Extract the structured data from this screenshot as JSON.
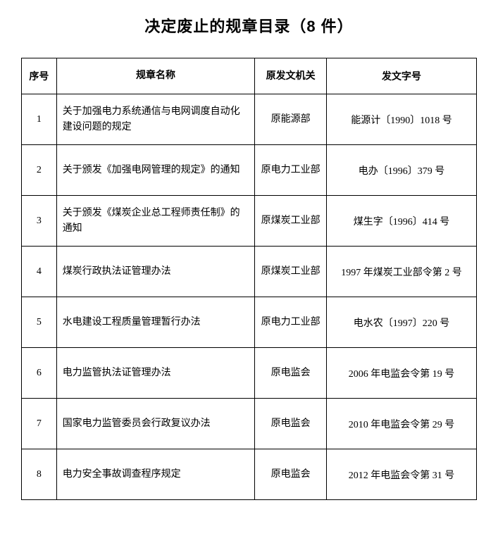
{
  "title": "决定废止的规章目录（8 件）",
  "table": {
    "columns": [
      "序号",
      "规章名称",
      "原发文机关",
      "发文字号"
    ],
    "rows": [
      {
        "index": "1",
        "name": "关于加强电力系统通信与电网调度自动化建设问题的规定",
        "agency": "原能源部",
        "docno": "能源计〔1990〕1018 号"
      },
      {
        "index": "2",
        "name": "关于颁发《加强电网管理的规定》的通知",
        "agency": "原电力工业部",
        "docno": "电办〔1996〕379 号"
      },
      {
        "index": "3",
        "name": "关于颁发《煤炭企业总工程师责任制》的通知",
        "agency": "原煤炭工业部",
        "docno": "煤生字〔1996〕414 号"
      },
      {
        "index": "4",
        "name": "煤炭行政执法证管理办法",
        "agency": "原煤炭工业部",
        "docno": "1997 年煤炭工业部令第 2 号"
      },
      {
        "index": "5",
        "name": "水电建设工程质量管理暂行办法",
        "agency": "原电力工业部",
        "docno": "电水农〔1997〕220 号"
      },
      {
        "index": "6",
        "name": "电力监管执法证管理办法",
        "agency": "原电监会",
        "docno": "2006 年电监会令第 19 号"
      },
      {
        "index": "7",
        "name": "国家电力监管委员会行政复议办法",
        "agency": "原电监会",
        "docno": "2010 年电监会令第 29 号"
      },
      {
        "index": "8",
        "name": "电力安全事故调查程序规定",
        "agency": "原电监会",
        "docno": "2012 年电监会令第 31 号"
      }
    ]
  }
}
